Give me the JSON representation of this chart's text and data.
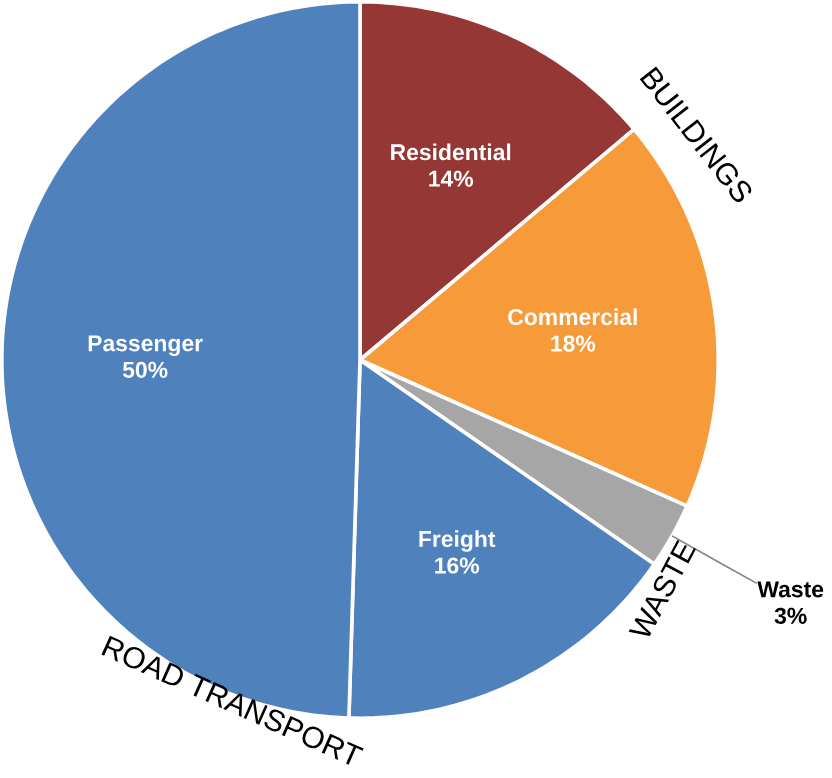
{
  "chart_data": {
    "type": "pie",
    "categories": [
      "Residential",
      "Commercial",
      "Waste",
      "Freight",
      "Passenger"
    ],
    "values": [
      14,
      18,
      3,
      16,
      50
    ],
    "colors": [
      "#953735",
      "#f79a3a",
      "#a6a6a6",
      "#4f81bd",
      "#4f81bd"
    ],
    "value_labels": [
      "14%",
      "18%",
      "3%",
      "16%",
      "50%"
    ],
    "annotations": [
      "BUILDINGS",
      "WASTE",
      "ROAD TRANSPORT"
    ]
  }
}
